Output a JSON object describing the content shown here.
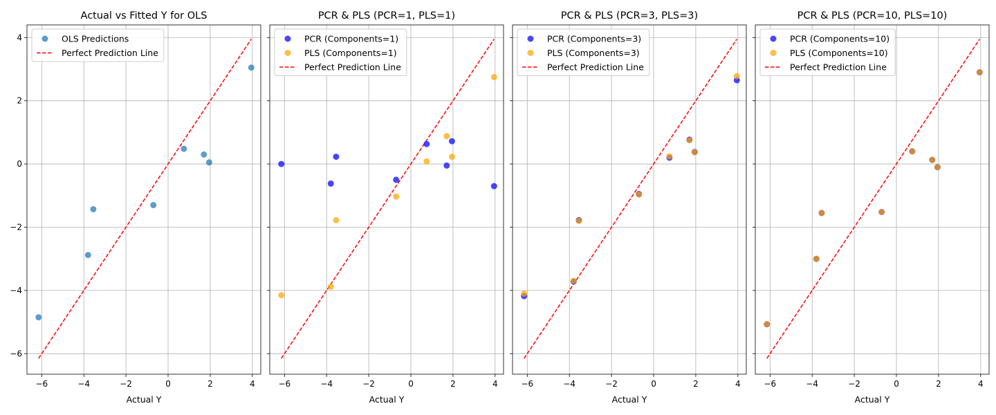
{
  "chart_data": [
    {
      "type": "scatter",
      "title": "Actual vs Fitted Y for OLS",
      "xlabel": "Actual Y",
      "ylabel": "",
      "xlim": [
        -6.7,
        4.4
      ],
      "ylim": [
        -6.65,
        4.4
      ],
      "xticks": [
        -6,
        -4,
        -2,
        0,
        2,
        4
      ],
      "yticks": [
        -6,
        -4,
        -2,
        0,
        2,
        4
      ],
      "grid": true,
      "legend_position": "top-left",
      "series": [
        {
          "name": "OLS Predictions",
          "color": "#1f77b4",
          "x": [
            -6.15,
            -3.8,
            -3.55,
            -0.7,
            0.75,
            1.7,
            1.95,
            3.95
          ],
          "y": [
            -4.85,
            -2.88,
            -1.43,
            -1.3,
            0.48,
            0.3,
            0.05,
            3.05
          ]
        }
      ],
      "reference_line": {
        "name": "Perfect Prediction Line",
        "color": "#ff0000",
        "from": [
          -6.15,
          -6.15
        ],
        "to": [
          3.95,
          3.95
        ]
      }
    },
    {
      "type": "scatter",
      "title": "PCR & PLS (PCR=1, PLS=1)",
      "xlabel": "Actual Y",
      "ylabel": "",
      "xlim": [
        -6.7,
        4.4
      ],
      "ylim": [
        -6.65,
        4.4
      ],
      "xticks": [
        -6,
        -4,
        -2,
        0,
        2,
        4
      ],
      "yticks": [
        -6,
        -4,
        -2,
        0,
        2,
        4
      ],
      "grid": true,
      "legend_position": "top-left",
      "series": [
        {
          "name": "PCR (Components=1)",
          "color": "#0000ff",
          "x": [
            -6.15,
            -3.8,
            -3.55,
            -0.7,
            0.75,
            1.7,
            1.95,
            3.95
          ],
          "y": [
            0.0,
            -0.62,
            0.23,
            -0.5,
            0.63,
            -0.05,
            0.72,
            -0.7
          ]
        },
        {
          "name": "PLS (Components=1)",
          "color": "#ffa500",
          "x": [
            -6.15,
            -3.8,
            -3.55,
            -0.7,
            0.75,
            1.7,
            1.95,
            3.95
          ],
          "y": [
            -4.15,
            -3.88,
            -1.78,
            -1.03,
            0.08,
            0.88,
            0.23,
            2.75
          ]
        }
      ],
      "reference_line": {
        "name": "Perfect Prediction Line",
        "color": "#ff0000",
        "from": [
          -6.15,
          -6.15
        ],
        "to": [
          3.95,
          3.95
        ]
      }
    },
    {
      "type": "scatter",
      "title": "PCR & PLS (PCR=3, PLS=3)",
      "xlabel": "Actual Y",
      "ylabel": "",
      "xlim": [
        -6.7,
        4.4
      ],
      "ylim": [
        -6.65,
        4.4
      ],
      "xticks": [
        -6,
        -4,
        -2,
        0,
        2,
        4
      ],
      "yticks": [
        -6,
        -4,
        -2,
        0,
        2,
        4
      ],
      "grid": true,
      "legend_position": "top-left",
      "series": [
        {
          "name": "PCR (Components=3)",
          "color": "#0000ff",
          "x": [
            -6.15,
            -3.8,
            -3.55,
            -0.7,
            0.75,
            1.7,
            1.95,
            3.95
          ],
          "y": [
            -4.18,
            -3.72,
            -1.78,
            -0.95,
            0.2,
            0.77,
            0.38,
            2.65
          ]
        },
        {
          "name": "PLS (Components=3)",
          "color": "#ffa500",
          "x": [
            -6.15,
            -3.8,
            -3.55,
            -0.7,
            0.75,
            1.7,
            1.95,
            3.95
          ],
          "y": [
            -4.1,
            -3.7,
            -1.8,
            -0.97,
            0.24,
            0.75,
            0.37,
            2.78
          ]
        }
      ],
      "reference_line": {
        "name": "Perfect Prediction Line",
        "color": "#ff0000",
        "from": [
          -6.15,
          -6.15
        ],
        "to": [
          3.95,
          3.95
        ]
      }
    },
    {
      "type": "scatter",
      "title": "PCR & PLS (PCR=10, PLS=10)",
      "xlabel": "Actual Y",
      "ylabel": "",
      "xlim": [
        -6.7,
        4.4
      ],
      "ylim": [
        -6.65,
        4.4
      ],
      "xticks": [
        -6,
        -4,
        -2,
        0,
        2,
        4
      ],
      "yticks": [
        -6,
        -4,
        -2,
        0,
        2,
        4
      ],
      "grid": true,
      "legend_position": "top-left",
      "series": [
        {
          "name": "PCR (Components=10)",
          "color": "#0000ff",
          "x": [
            -6.15,
            -3.8,
            -3.55,
            -0.7,
            0.75,
            1.7,
            1.95,
            3.95
          ],
          "y": [
            -5.07,
            -3.0,
            -1.55,
            -1.52,
            0.4,
            0.13,
            -0.1,
            2.9
          ]
        },
        {
          "name": "PLS (Components=10)",
          "color": "#ffa500",
          "x": [
            -6.15,
            -3.8,
            -3.55,
            -0.7,
            0.75,
            1.7,
            1.95,
            3.95
          ],
          "y": [
            -5.07,
            -3.0,
            -1.55,
            -1.52,
            0.4,
            0.13,
            -0.1,
            2.9
          ]
        }
      ],
      "reference_line": {
        "name": "Perfect Prediction Line",
        "color": "#ff0000",
        "from": [
          -6.15,
          -6.15
        ],
        "to": [
          3.95,
          3.95
        ]
      }
    }
  ]
}
